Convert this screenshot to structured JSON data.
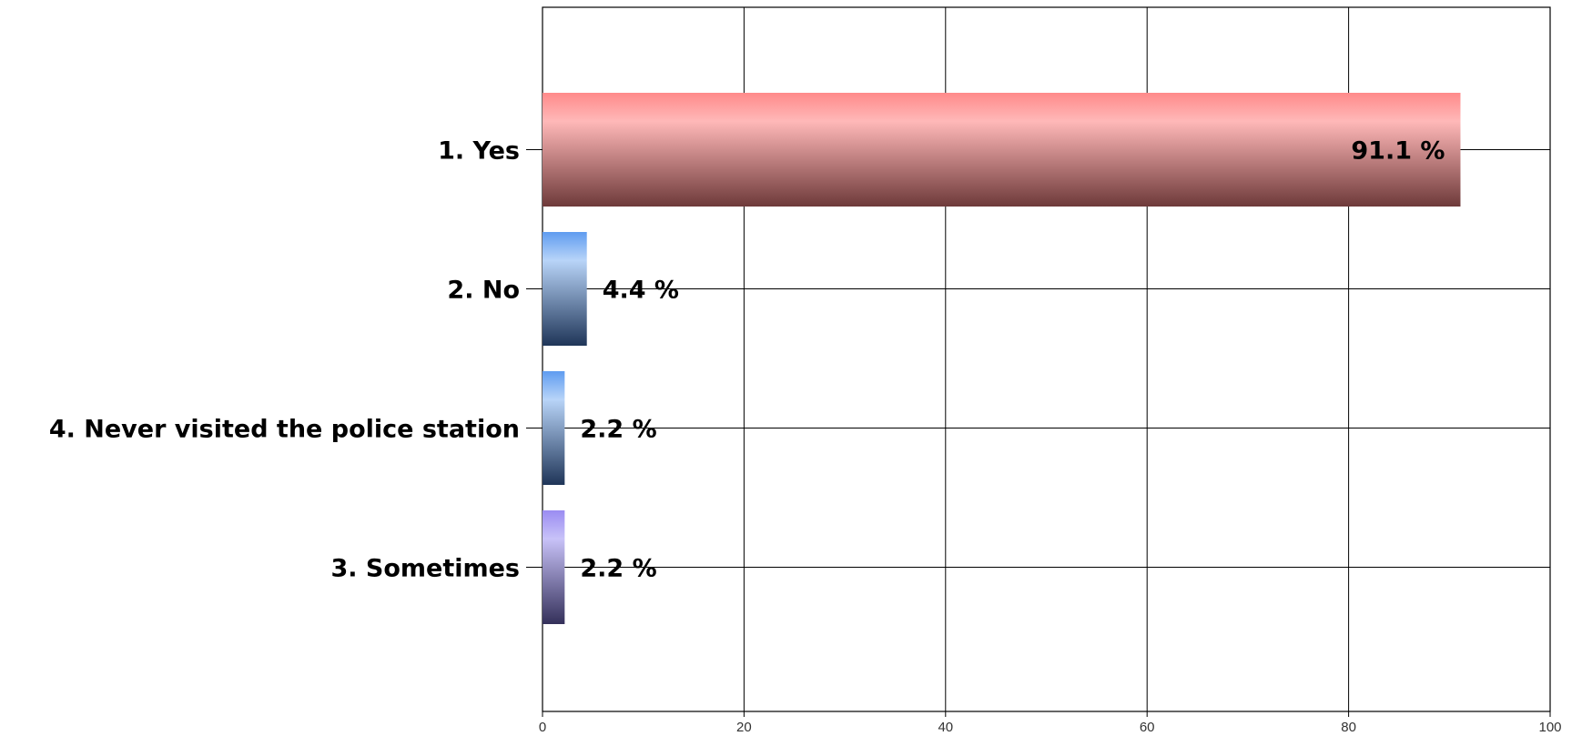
{
  "chart_data": {
    "type": "bar",
    "orientation": "horizontal",
    "categories": [
      "1. Yes",
      "2. No",
      "4. Never visited the police station",
      "3. Sometimes"
    ],
    "values": [
      91.1,
      4.4,
      2.2,
      2.2
    ],
    "value_labels": [
      "91.1 %",
      "4.4 %",
      "2.2 %",
      "2.2 %"
    ],
    "bar_colors": [
      [
        "#ff8a8a",
        "#ffb8b8",
        "#6e3a3a"
      ],
      [
        "#5f9cf0",
        "#b8d4f8",
        "#1f3558"
      ],
      [
        "#5f9cf0",
        "#b8d4f8",
        "#1f3558"
      ],
      [
        "#9a8cf2",
        "#c8c2f8",
        "#34305a"
      ]
    ],
    "xlim": [
      0,
      100
    ],
    "xticks": [
      0,
      20,
      40,
      60,
      80,
      100
    ],
    "grid": true,
    "title": "",
    "xlabel": "",
    "ylabel": ""
  }
}
